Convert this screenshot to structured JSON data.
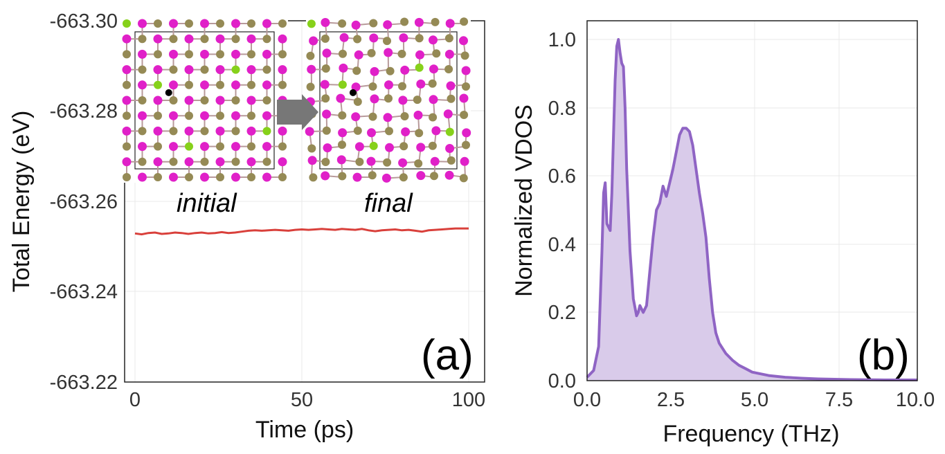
{
  "colors": {
    "energy_line": "#d9403b",
    "vdos_line": "#8f64c4",
    "vdos_fill": "#d9cbea",
    "atom_magenta": "#e020c8",
    "atom_olive": "#958a55",
    "atom_green": "#86d11a",
    "arrow": "#777777"
  },
  "chart_data": [
    {
      "type": "line",
      "panel_label": "(a)",
      "xlabel": "Time (ps)",
      "ylabel": "Total Energy (eV)",
      "xlim": [
        -1,
        104
      ],
      "ylim": [
        -663.22,
        -663.3
      ],
      "x_ticks": [
        0,
        50,
        100
      ],
      "x_tick_labels": [
        "0",
        "50",
        "100"
      ],
      "y_ticks": [
        -663.3,
        -663.28,
        -663.26,
        -663.24,
        -663.22
      ],
      "y_tick_labels": [
        "-663.30",
        "-663.28",
        "-663.26",
        "-663.24",
        "-663.22"
      ],
      "grid": true,
      "series": [
        {
          "x": [
            0,
            2,
            4,
            6,
            8,
            10,
            12,
            14,
            16,
            18,
            20,
            22,
            24,
            26,
            28,
            30,
            32,
            34,
            36,
            38,
            40,
            42,
            44,
            46,
            48,
            50,
            52,
            54,
            56,
            58,
            60,
            62,
            64,
            66,
            68,
            70,
            72,
            74,
            76,
            78,
            80,
            82,
            84,
            86,
            88,
            90,
            92,
            94,
            96,
            98,
            100
          ],
          "y": [
            -663.2529,
            -663.2527,
            -663.253,
            -663.2531,
            -663.2528,
            -663.2529,
            -663.2531,
            -663.253,
            -663.2528,
            -663.253,
            -663.2531,
            -663.2529,
            -663.253,
            -663.2532,
            -663.253,
            -663.2531,
            -663.2533,
            -663.2535,
            -663.2536,
            -663.2535,
            -663.2536,
            -663.2537,
            -663.2536,
            -663.2535,
            -663.2537,
            -663.2538,
            -663.2537,
            -663.2538,
            -663.2539,
            -663.2538,
            -663.2537,
            -663.2539,
            -663.2538,
            -663.2537,
            -663.2539,
            -663.2536,
            -663.2534,
            -663.2536,
            -663.2537,
            -663.2538,
            -663.2536,
            -663.2537,
            -663.2535,
            -663.2533,
            -663.2536,
            -663.2537,
            -663.2538,
            -663.2539,
            -663.254,
            -663.254,
            -663.254
          ]
        }
      ],
      "insets": [
        {
          "label": "initial"
        },
        {
          "label": "final"
        }
      ]
    },
    {
      "type": "area",
      "panel_label": "(b)",
      "xlabel": "Frequency (THz)",
      "ylabel": "Normalized VDOS",
      "xlim": [
        0.0,
        10.0
      ],
      "ylim": [
        0.0,
        1.05
      ],
      "x_ticks": [
        0.0,
        2.5,
        5.0,
        7.5,
        10.0
      ],
      "x_tick_labels": [
        "0.0",
        "2.5",
        "5.0",
        "7.5",
        "10.0"
      ],
      "y_ticks": [
        0.0,
        0.2,
        0.4,
        0.6,
        0.8,
        1.0
      ],
      "y_tick_labels": [
        "0.0",
        "0.2",
        "0.4",
        "0.6",
        "0.8",
        "1.0"
      ],
      "grid": true,
      "series": [
        {
          "x": [
            0.0,
            0.2,
            0.35,
            0.45,
            0.5,
            0.55,
            0.6,
            0.65,
            0.7,
            0.75,
            0.8,
            0.85,
            0.9,
            0.95,
            1.0,
            1.05,
            1.1,
            1.15,
            1.2,
            1.3,
            1.4,
            1.5,
            1.55,
            1.6,
            1.7,
            1.8,
            1.9,
            2.0,
            2.1,
            2.2,
            2.3,
            2.4,
            2.5,
            2.6,
            2.7,
            2.8,
            2.9,
            3.0,
            3.1,
            3.2,
            3.3,
            3.4,
            3.5,
            3.6,
            3.7,
            3.8,
            3.9,
            4.0,
            4.2,
            4.4,
            4.6,
            4.8,
            5.0,
            5.5,
            6.0,
            6.5,
            7.0,
            7.5,
            8.0,
            9.0,
            10.0
          ],
          "y": [
            0.01,
            0.03,
            0.1,
            0.38,
            0.55,
            0.58,
            0.46,
            0.45,
            0.44,
            0.55,
            0.72,
            0.88,
            0.98,
            1.0,
            0.96,
            0.93,
            0.92,
            0.8,
            0.62,
            0.38,
            0.24,
            0.19,
            0.2,
            0.22,
            0.2,
            0.22,
            0.32,
            0.42,
            0.5,
            0.52,
            0.57,
            0.54,
            0.58,
            0.62,
            0.67,
            0.72,
            0.74,
            0.74,
            0.73,
            0.69,
            0.62,
            0.55,
            0.49,
            0.42,
            0.3,
            0.2,
            0.14,
            0.11,
            0.08,
            0.06,
            0.045,
            0.035,
            0.025,
            0.015,
            0.01,
            0.007,
            0.005,
            0.004,
            0.003,
            0.002,
            0.002
          ]
        }
      ]
    }
  ]
}
